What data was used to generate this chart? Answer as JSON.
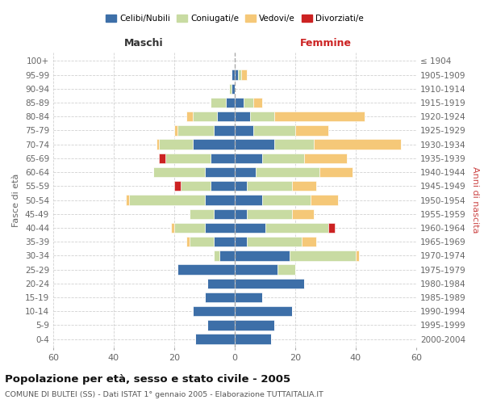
{
  "age_groups": [
    "100+",
    "95-99",
    "90-94",
    "85-89",
    "80-84",
    "75-79",
    "70-74",
    "65-69",
    "60-64",
    "55-59",
    "50-54",
    "45-49",
    "40-44",
    "35-39",
    "30-34",
    "25-29",
    "20-24",
    "15-19",
    "10-14",
    "5-9",
    "0-4"
  ],
  "birth_years": [
    "≤ 1904",
    "1905-1909",
    "1910-1914",
    "1915-1919",
    "1920-1924",
    "1925-1929",
    "1930-1934",
    "1935-1939",
    "1940-1944",
    "1945-1949",
    "1950-1954",
    "1955-1959",
    "1960-1964",
    "1965-1969",
    "1970-1974",
    "1975-1979",
    "1980-1984",
    "1985-1989",
    "1990-1994",
    "1995-1999",
    "2000-2004"
  ],
  "colors": {
    "celibe": "#3d6fa8",
    "coniugato": "#c8dba2",
    "vedovo": "#f5c878",
    "divorziato": "#cc2222"
  },
  "maschi": {
    "celibe": [
      0,
      1,
      1,
      3,
      6,
      7,
      14,
      8,
      10,
      8,
      10,
      7,
      10,
      7,
      5,
      19,
      9,
      10,
      14,
      9,
      13
    ],
    "coniugato": [
      0,
      0,
      1,
      5,
      8,
      12,
      11,
      15,
      17,
      10,
      25,
      8,
      10,
      8,
      2,
      0,
      0,
      0,
      0,
      0,
      0
    ],
    "vedovo": [
      0,
      0,
      0,
      0,
      2,
      1,
      1,
      0,
      0,
      0,
      1,
      0,
      1,
      1,
      0,
      0,
      0,
      0,
      0,
      0,
      0
    ],
    "divorziato": [
      0,
      0,
      0,
      0,
      0,
      0,
      0,
      2,
      0,
      2,
      0,
      0,
      0,
      0,
      0,
      0,
      0,
      0,
      0,
      0,
      0
    ]
  },
  "femmine": {
    "celibe": [
      0,
      1,
      0,
      3,
      5,
      6,
      13,
      9,
      7,
      4,
      9,
      4,
      10,
      4,
      18,
      14,
      23,
      9,
      19,
      13,
      12
    ],
    "coniugato": [
      0,
      1,
      0,
      3,
      8,
      14,
      13,
      14,
      21,
      15,
      16,
      15,
      21,
      18,
      22,
      6,
      0,
      0,
      0,
      0,
      0
    ],
    "vedovo": [
      0,
      2,
      0,
      3,
      30,
      11,
      29,
      14,
      11,
      8,
      9,
      7,
      0,
      5,
      1,
      0,
      0,
      0,
      0,
      0,
      0
    ],
    "divorziato": [
      0,
      0,
      0,
      0,
      0,
      0,
      0,
      0,
      0,
      0,
      0,
      0,
      2,
      0,
      0,
      0,
      0,
      0,
      0,
      0,
      0
    ]
  },
  "xlim": 60,
  "title": "Popolazione per età, sesso e stato civile - 2005",
  "subtitle": "COMUNE DI BULTEI (SS) - Dati ISTAT 1° gennaio 2005 - Elaborazione TUTTAITALIA.IT",
  "ylabel_left": "Fasce di età",
  "ylabel_right": "Anni di nascita",
  "xlabel_left": "Maschi",
  "xlabel_right": "Femmine",
  "background_color": "#ffffff",
  "grid_color": "#cccccc"
}
